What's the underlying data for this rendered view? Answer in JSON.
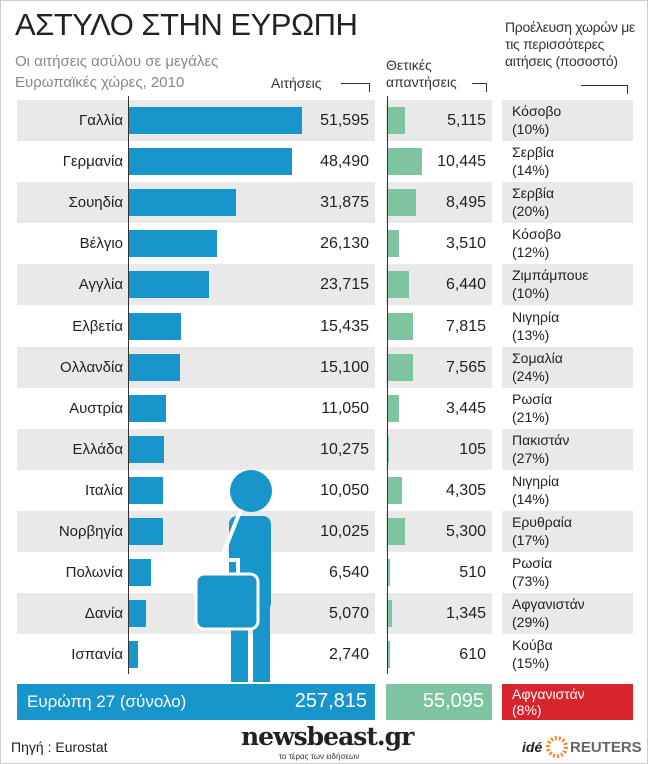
{
  "title": "ΑΣΤΥΛΟ ΣΤΗΝ ΕΥΡΩΠΗ",
  "subtitle": "Οι αιτήσεις ασύλου σε μεγάλες Ευρωπαϊκές χώρες, 2010",
  "colors": {
    "applications": "#1896cc",
    "positive": "#7fc4a0",
    "total_origin": "#d9232d",
    "row_gray": "#e9e9e9"
  },
  "chart_data": {
    "type": "bar",
    "title": "ΑΣΤΥΛΟ ΣΤΗΝ ΕΥΡΩΠΗ",
    "headers": {
      "applications": "Αιτήσεις",
      "positive": "Θετικές απαντήσεις",
      "origin": "Προέλευση χωρών με τις περισσότερες αιτήσεις (ποσοστό)"
    },
    "categories": [
      "Γαλλία",
      "Γερμανία",
      "Σουηδία",
      "Βέλγιο",
      "Αγγλία",
      "Ελβετία",
      "Ολλανδία",
      "Αυστρία",
      "Ελλάδα",
      "Ιταλία",
      "Νορβηγία",
      "Πολωνία",
      "Δανία",
      "Ισπανία"
    ],
    "series": [
      {
        "name": "Αιτήσεις",
        "values": [
          51595,
          48490,
          31875,
          26130,
          23715,
          15435,
          15100,
          11050,
          10275,
          10050,
          10025,
          6540,
          5070,
          2740
        ],
        "labels": [
          "51,595",
          "48,490",
          "31,875",
          "26,130",
          "23,715",
          "15,435",
          "15,100",
          "11,050",
          "10,275",
          "10,050",
          "10,025",
          "6,540",
          "5,070",
          "2,740"
        ]
      },
      {
        "name": "Θετικές απαντήσεις",
        "values": [
          5115,
          10445,
          8495,
          3510,
          6440,
          7815,
          7565,
          3445,
          105,
          4305,
          5300,
          510,
          1345,
          610
        ],
        "labels": [
          "5,115",
          "10,445",
          "8,495",
          "3,510",
          "6,440",
          "7,815",
          "7,565",
          "3,445",
          "105",
          "4,305",
          "5,300",
          "510",
          "1,345",
          "610"
        ]
      }
    ],
    "origins": [
      [
        "Κόσοβο",
        "(10%)"
      ],
      [
        "Σερβία",
        "(14%)"
      ],
      [
        "Σερβία",
        "(20%)"
      ],
      [
        "Κόσοβο",
        "(12%)"
      ],
      [
        "Ζιμπάμπουε",
        "(10%)"
      ],
      [
        "Νιγηρία",
        "(13%)"
      ],
      [
        "Σομαλία",
        "(24%)"
      ],
      [
        "Ρωσία",
        "(21%)"
      ],
      [
        "Πακιστάν",
        "(27%)"
      ],
      [
        "Νιγηρία",
        "(14%)"
      ],
      [
        "Ερυθραία",
        "(17%)"
      ],
      [
        "Ρωσία",
        "(73%)"
      ],
      [
        "Αφγανιστάν",
        "(29%)"
      ],
      [
        "Κούβα",
        "(15%)"
      ]
    ],
    "total": {
      "label": "Ευρώπη 27 (σύνολο)",
      "applications": "257,815",
      "positive": "55,095",
      "origin": "Αφγανιστάν",
      "origin_pct": "(8%)"
    }
  },
  "footer": {
    "source": "Πηγή : Eurostat",
    "logo": "newsbeast.gr",
    "logo_tagline": "το τέρας των ειδήσεων",
    "ide": "idé",
    "reuters": "REUTERS"
  }
}
